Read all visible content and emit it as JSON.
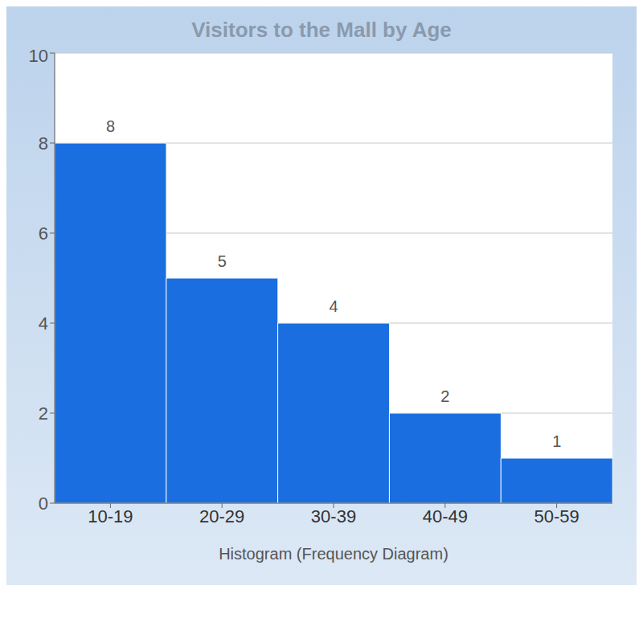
{
  "chart_data": {
    "type": "bar",
    "title": "Visitors to the Mall by Age",
    "x_label": "Histogram (Frequency Diagram)",
    "categories": [
      "10-19",
      "20-29",
      "30-39",
      "40-49",
      "50-59"
    ],
    "values": [
      8,
      5,
      4,
      2,
      1
    ],
    "color": "#1a6ee0",
    "ylim": [
      0,
      10
    ],
    "yticks": [
      0,
      2,
      4,
      6,
      8,
      10
    ],
    "grid": true,
    "data_labels": true
  }
}
